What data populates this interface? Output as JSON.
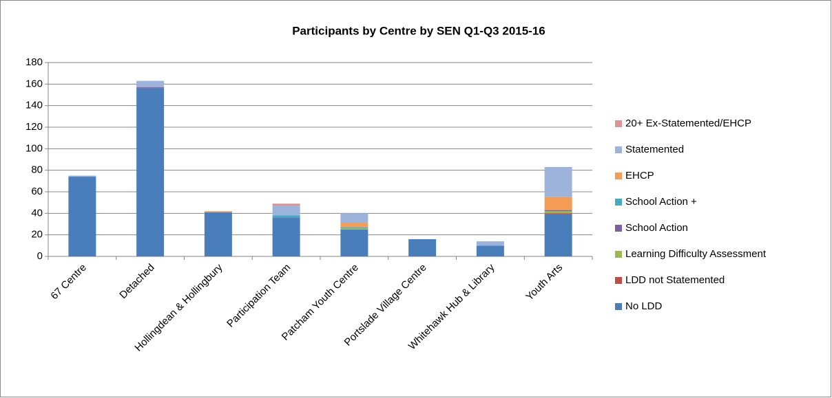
{
  "chart_data": {
    "type": "stacked_bar",
    "title": "Participants by Centre by SEN Q1-Q3 2015-16",
    "categories": [
      "67 Centre",
      "Detached",
      "Hollingdean & Hollingbury",
      "Participation Team",
      "Patcham Youth Centre",
      "Portslade Village Centre",
      "Whitehawk Hub & Library",
      "Youth Arts"
    ],
    "series": [
      {
        "name": "No LDD",
        "color": "#4a7ebb",
        "values": [
          74,
          156,
          41,
          36,
          25,
          16,
          10,
          39
        ]
      },
      {
        "name": "LDD not Statemented",
        "color": "#be4b48",
        "values": [
          0,
          0,
          0,
          0,
          0,
          0,
          0,
          1
        ]
      },
      {
        "name": "Learning Difficulty Assessment",
        "color": "#98b954",
        "values": [
          0,
          0,
          0,
          0,
          1,
          0,
          0,
          2
        ]
      },
      {
        "name": "School Action",
        "color": "#7d60a0",
        "values": [
          0,
          1,
          0,
          0,
          0,
          0,
          0,
          1
        ]
      },
      {
        "name": "School Action +",
        "color": "#46aac5",
        "values": [
          0,
          0,
          0,
          2,
          1,
          0,
          0,
          0
        ]
      },
      {
        "name": "EHCP",
        "color": "#f59d56",
        "values": [
          0,
          0,
          1,
          0,
          4,
          0,
          0,
          12
        ]
      },
      {
        "name": "Statemented",
        "color": "#9db3d9",
        "values": [
          1,
          6,
          0,
          9,
          9,
          0,
          4,
          28
        ]
      },
      {
        "name": "20+ Ex-Statemented/EHCP",
        "color": "#d99694",
        "values": [
          0,
          0,
          0,
          2,
          0,
          0,
          0,
          0
        ]
      }
    ],
    "ylim": [
      0,
      180
    ],
    "yticks": [
      0,
      20,
      40,
      60,
      80,
      100,
      120,
      140,
      160,
      180
    ],
    "grid": true,
    "legend": "right"
  }
}
